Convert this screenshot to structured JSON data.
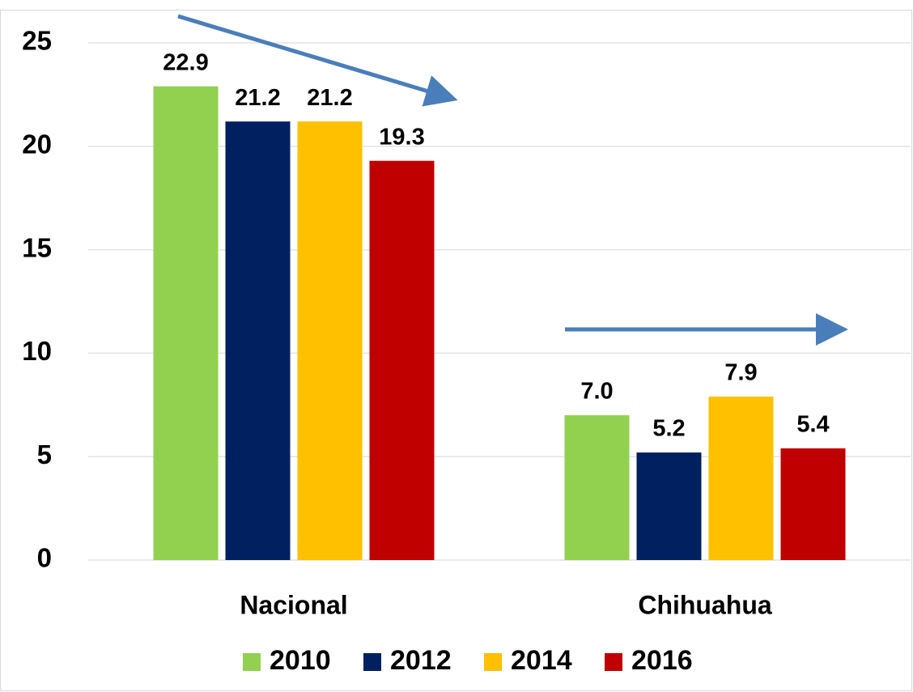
{
  "chart_data": {
    "type": "bar",
    "categories": [
      "Nacional",
      "Chihuahua"
    ],
    "series": [
      {
        "name": "2010",
        "color": "#92d050",
        "values": [
          22.9,
          7.0
        ],
        "value_labels": [
          "22.9",
          "7.0"
        ]
      },
      {
        "name": "2012",
        "color": "#002060",
        "values": [
          21.2,
          5.2
        ]
      },
      {
        "name": "2014",
        "color": "#ffc000",
        "values": [
          21.2,
          7.9
        ]
      },
      {
        "name": "2016",
        "color": "#c00000",
        "values": [
          19.3,
          5.4
        ]
      }
    ],
    "ylim": [
      0,
      25
    ],
    "yticks": [
      0,
      5,
      10,
      15,
      20,
      25
    ],
    "grid": true,
    "legend": "bottom"
  }
}
